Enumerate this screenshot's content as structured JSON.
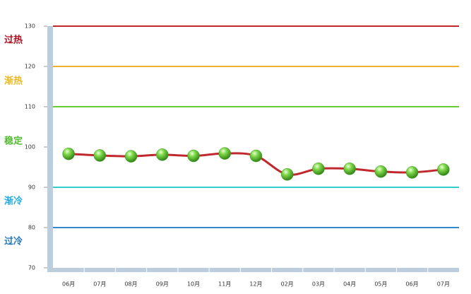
{
  "chart_data": {
    "type": "line",
    "categories": [
      "06月",
      "07月",
      "08月",
      "09月",
      "10月",
      "11月",
      "12月",
      "02月",
      "03月",
      "04月",
      "05月",
      "06月",
      "07月"
    ],
    "values": [
      98.3,
      97.9,
      97.7,
      98.1,
      97.8,
      98.4,
      97.8,
      93.2,
      94.6,
      94.6,
      93.9,
      93.7,
      94.4
    ],
    "color": "#c0282d",
    "marker_color": "#3aa020",
    "ylim": [
      70,
      130
    ],
    "yticks": [
      70,
      80,
      90,
      100,
      110,
      120,
      130
    ],
    "grid": false,
    "reference_lines": [
      {
        "value": 130,
        "color": "#c0282d"
      },
      {
        "value": 120,
        "color": "#f0b030"
      },
      {
        "value": 110,
        "color": "#66cc33"
      },
      {
        "value": 90,
        "color": "#33cccc"
      },
      {
        "value": 80,
        "color": "#3388cc"
      }
    ],
    "zones": [
      {
        "label": "过热",
        "color": "#b01020"
      },
      {
        "label": "渐热",
        "color": "#f0b820"
      },
      {
        "label": "稳定",
        "color": "#55bb33"
      },
      {
        "label": "渐冷",
        "color": "#22aadd"
      },
      {
        "label": "过冷",
        "color": "#2277bb"
      }
    ]
  }
}
